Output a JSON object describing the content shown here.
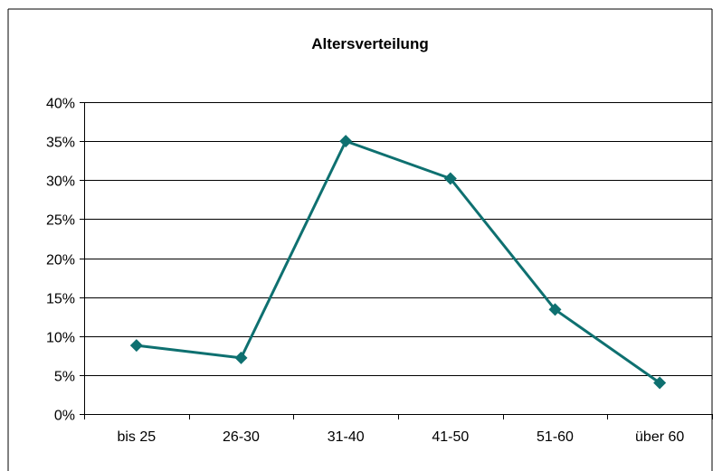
{
  "chart_data": {
    "type": "line",
    "title": "Altersverteilung",
    "categories": [
      "bis 25",
      "26-30",
      "31-40",
      "41-50",
      "51-60",
      "über 60"
    ],
    "series": [
      {
        "values": [
          8.8,
          7.2,
          35.0,
          30.2,
          13.4,
          4.0
        ]
      }
    ],
    "y_tick_labels": [
      "0%",
      "5%",
      "10%",
      "15%",
      "20%",
      "25%",
      "30%",
      "35%",
      "40%"
    ],
    "ylim": [
      0,
      40
    ],
    "y_unit": "%",
    "grid": true,
    "legend": "none",
    "colors": {
      "line": "#0e7070",
      "marker": "#0e7070",
      "gridline": "#000000",
      "frame": "#000000"
    }
  }
}
